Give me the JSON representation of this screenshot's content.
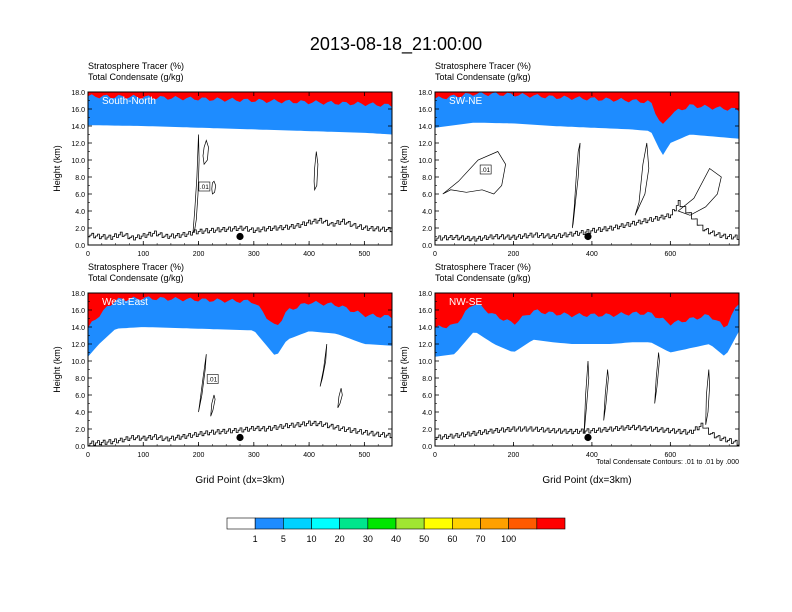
{
  "figure": {
    "title": "2013-08-18_21:00:00",
    "footnote": "Total Condensate Contours: .01 to .01 by .000"
  },
  "colorbar": {
    "colors": [
      "#ffffff",
      "#1e8cff",
      "#00d2ff",
      "#00ffff",
      "#00e68c",
      "#00e600",
      "#a0e632",
      "#ffff00",
      "#ffd200",
      "#ffa000",
      "#ff5a00",
      "#ff0000"
    ],
    "labels": [
      "1",
      "5",
      "10",
      "20",
      "30",
      "40",
      "50",
      "60",
      "70",
      "100"
    ]
  },
  "chart_data": [
    {
      "type": "contour",
      "header_line1": "Stratosphere Tracer   (%)",
      "header_line2": "Total Condensate   (g/kg)",
      "panel_label": "South-North",
      "ylabel": "Height (km)",
      "xlabel": "",
      "xlim": [
        0,
        550
      ],
      "ylim": [
        0,
        18
      ],
      "xticks": [
        0,
        100,
        200,
        300,
        400,
        500
      ],
      "yticks": [
        "0.0",
        "2.0",
        "4.0",
        "6.0",
        "8.0",
        "10.0",
        "12.0",
        "14.0",
        "16.0",
        "18.0"
      ],
      "contour_label": ".01",
      "marker": {
        "x": 275,
        "y": 1.0
      },
      "terrain_x": [
        0,
        20,
        40,
        60,
        80,
        100,
        120,
        140,
        160,
        180,
        190,
        200,
        220,
        240,
        260,
        280,
        300,
        320,
        340,
        360,
        380,
        400,
        420,
        440,
        460,
        480,
        500,
        520,
        550
      ],
      "terrain_y": [
        1.2,
        1.0,
        0.9,
        1.3,
        0.8,
        1.1,
        1.4,
        1.0,
        1.1,
        1.3,
        1.5,
        1.6,
        1.7,
        1.8,
        1.9,
        2.0,
        1.7,
        1.9,
        2.0,
        2.1,
        2.3,
        2.7,
        2.9,
        2.4,
        2.8,
        2.3,
        2.0,
        1.9,
        1.8
      ],
      "tropo_x": [
        0,
        100,
        200,
        300,
        400,
        500,
        550
      ],
      "tropo_y": [
        14.1,
        14.0,
        13.8,
        13.6,
        13.4,
        13.2,
        13.0
      ],
      "cloud_outlines": [
        {
          "x": [
            190,
            193,
            197,
            200,
            201,
            199,
            196,
            193,
            190
          ],
          "y": [
            1.5,
            4.0,
            8.0,
            13.0,
            10.0,
            6.0,
            3.0,
            1.8,
            1.5
          ]
        },
        {
          "x": [
            210,
            216,
            218,
            214,
            210,
            208,
            210
          ],
          "y": [
            9.5,
            10.0,
            11.5,
            12.3,
            11.5,
            10.5,
            9.5
          ]
        },
        {
          "x": [
            225,
            229,
            231,
            228,
            225,
            224,
            225
          ],
          "y": [
            6.0,
            6.2,
            7.0,
            7.5,
            7.3,
            6.6,
            6.0
          ]
        },
        {
          "x": [
            410,
            414,
            416,
            413,
            410,
            409,
            410
          ],
          "y": [
            6.5,
            7.0,
            9.5,
            11.0,
            9.0,
            7.5,
            6.5
          ]
        }
      ]
    },
    {
      "type": "contour",
      "header_line1": "Stratosphere Tracer   (%)",
      "header_line2": "Total Condensate   (g/kg)",
      "panel_label": "SW-NE",
      "ylabel": "Height (km)",
      "xlabel": "",
      "xlim": [
        0,
        775
      ],
      "ylim": [
        0,
        18
      ],
      "xticks": [
        0,
        200,
        400,
        600
      ],
      "yticks": [
        "0.0",
        "2.0",
        "4.0",
        "6.0",
        "8.0",
        "10.0",
        "12.0",
        "14.0",
        "16.0",
        "18.0"
      ],
      "contour_label": ".01",
      "marker": {
        "x": 390,
        "y": 1.0
      },
      "terrain_x": [
        0,
        50,
        100,
        150,
        200,
        250,
        300,
        350,
        380,
        400,
        450,
        500,
        550,
        600,
        620,
        640,
        660,
        680,
        700,
        720,
        740,
        775
      ],
      "terrain_y": [
        0.8,
        0.9,
        0.7,
        1.0,
        0.9,
        1.2,
        1.0,
        1.3,
        1.5,
        1.7,
        2.0,
        2.5,
        3.0,
        3.5,
        5.0,
        4.0,
        3.0,
        2.0,
        1.5,
        1.2,
        1.0,
        0.9
      ],
      "tropo_x": [
        0,
        100,
        200,
        300,
        400,
        500,
        550,
        580,
        600,
        650,
        700,
        775
      ],
      "tropo_y": [
        13.8,
        14.4,
        14.3,
        14.0,
        13.8,
        13.6,
        13.4,
        10.5,
        12.0,
        13.0,
        12.8,
        12.5
      ],
      "cloud_outlines": [
        {
          "x": [
            20,
            60,
            110,
            160,
            180,
            170,
            150,
            120,
            80,
            40,
            20
          ],
          "y": [
            6.0,
            7.5,
            10.0,
            11.0,
            9.5,
            7.0,
            6.0,
            6.5,
            6.2,
            6.5,
            6.0
          ]
        },
        {
          "x": [
            350,
            355,
            360,
            365,
            370,
            365,
            358,
            352,
            350
          ],
          "y": [
            2.0,
            4.5,
            8.0,
            11.0,
            12.0,
            8.0,
            5.0,
            2.5,
            2.0
          ]
        },
        {
          "x": [
            510,
            520,
            530,
            540,
            545,
            535,
            520,
            510
          ],
          "y": [
            3.5,
            5.0,
            9.5,
            12.0,
            9.0,
            6.0,
            4.5,
            3.5
          ]
        },
        {
          "x": [
            620,
            660,
            700,
            730,
            720,
            690,
            650,
            620
          ],
          "y": [
            4.0,
            5.5,
            9.0,
            8.0,
            6.0,
            4.5,
            3.5,
            4.0
          ]
        }
      ]
    },
    {
      "type": "contour",
      "header_line1": "Stratosphere Tracer   (%)",
      "header_line2": "Total Condensate   (g/kg)",
      "panel_label": "West-East",
      "ylabel": "Height (km)",
      "xlabel": "Grid Point (dx=3km)",
      "xlim": [
        0,
        550
      ],
      "ylim": [
        0,
        18
      ],
      "xticks": [
        0,
        100,
        200,
        300,
        400,
        500
      ],
      "yticks": [
        "0.0",
        "2.0",
        "4.0",
        "6.0",
        "8.0",
        "10.0",
        "12.0",
        "14.0",
        "16.0",
        "18.0"
      ],
      "contour_label": ".01",
      "marker": {
        "x": 275,
        "y": 1.0
      },
      "terrain_x": [
        0,
        20,
        40,
        60,
        80,
        100,
        120,
        140,
        160,
        180,
        200,
        220,
        240,
        260,
        280,
        300,
        320,
        340,
        360,
        380,
        400,
        420,
        440,
        460,
        480,
        500,
        520,
        550
      ],
      "terrain_y": [
        0.3,
        0.4,
        0.5,
        0.7,
        1.0,
        0.9,
        1.1,
        0.8,
        1.0,
        1.2,
        1.4,
        1.6,
        1.7,
        1.8,
        1.9,
        2.1,
        2.0,
        2.2,
        2.4,
        2.5,
        2.7,
        2.6,
        2.3,
        2.0,
        1.8,
        1.6,
        1.4,
        1.2
      ],
      "tropo_x": [
        0,
        20,
        50,
        100,
        200,
        300,
        340,
        360,
        400,
        450,
        500,
        550
      ],
      "tropo_y": [
        10.5,
        12.0,
        13.8,
        14.0,
        13.8,
        13.6,
        10.5,
        12.5,
        13.5,
        13.2,
        12.0,
        11.8
      ],
      "cloud_outlines": [
        {
          "x": [
            200,
            206,
            212,
            214,
            208,
            202,
            200
          ],
          "y": [
            4.0,
            6.0,
            9.0,
            10.8,
            8.0,
            5.0,
            4.0
          ]
        },
        {
          "x": [
            222,
            226,
            230,
            228,
            224,
            222
          ],
          "y": [
            3.5,
            4.2,
            5.5,
            6.0,
            5.0,
            3.5
          ]
        },
        {
          "x": [
            420,
            426,
            432,
            430,
            424,
            420
          ],
          "y": [
            7.0,
            9.0,
            12.0,
            10.0,
            8.0,
            7.0
          ]
        },
        {
          "x": [
            452,
            456,
            460,
            458,
            454,
            452
          ],
          "y": [
            4.5,
            5.0,
            6.0,
            6.8,
            5.8,
            4.5
          ]
        }
      ]
    },
    {
      "type": "contour",
      "header_line1": "Stratosphere Tracer   (%)",
      "header_line2": "Total Condensate   (g/kg)",
      "panel_label": "NW-SE",
      "ylabel": "Height (km)",
      "xlabel": "Grid Point (dx=3km)",
      "xlim": [
        0,
        775
      ],
      "ylim": [
        0,
        18
      ],
      "xticks": [
        0,
        200,
        400,
        600
      ],
      "yticks": [
        "0.0",
        "2.0",
        "4.0",
        "6.0",
        "8.0",
        "10.0",
        "12.0",
        "14.0",
        "16.0",
        "18.0"
      ],
      "contour_label": "",
      "marker": {
        "x": 390,
        "y": 1.0
      },
      "terrain_x": [
        0,
        50,
        100,
        150,
        200,
        250,
        300,
        350,
        400,
        450,
        500,
        550,
        600,
        650,
        680,
        700,
        720,
        775
      ],
      "terrain_y": [
        1.0,
        1.2,
        1.5,
        1.8,
        2.0,
        2.0,
        1.8,
        1.7,
        1.8,
        2.0,
        2.2,
        2.0,
        1.8,
        1.6,
        2.5,
        1.5,
        1.0,
        0.3
      ],
      "tropo_x": [
        0,
        50,
        100,
        150,
        200,
        250,
        300,
        350,
        400,
        450,
        500,
        550,
        600,
        650,
        700,
        740,
        775
      ],
      "tropo_y": [
        10.5,
        10.8,
        13.5,
        12.0,
        11.0,
        12.5,
        12.2,
        12.0,
        12.0,
        12.0,
        12.2,
        12.2,
        11.0,
        11.5,
        12.0,
        10.5,
        13.5
      ],
      "cloud_outlines": [
        {
          "x": [
            380,
            386,
            392,
            390,
            384,
            380
          ],
          "y": [
            1.5,
            4.5,
            8.0,
            10.0,
            6.0,
            1.5
          ]
        },
        {
          "x": [
            430,
            436,
            442,
            440,
            434,
            430
          ],
          "y": [
            3.0,
            5.0,
            8.0,
            9.0,
            6.0,
            3.0
          ]
        },
        {
          "x": [
            560,
            566,
            572,
            570,
            564,
            560
          ],
          "y": [
            5.0,
            7.0,
            10.0,
            11.0,
            8.0,
            5.0
          ]
        },
        {
          "x": [
            690,
            696,
            700,
            698,
            692,
            690
          ],
          "y": [
            2.5,
            4.0,
            7.0,
            9.0,
            6.0,
            2.5
          ]
        }
      ]
    }
  ]
}
